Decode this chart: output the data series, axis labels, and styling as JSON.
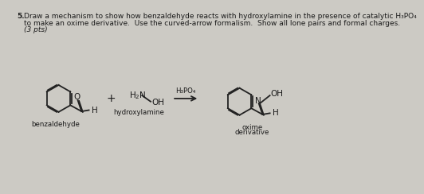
{
  "background_color": "#cccac4",
  "question_number": "5.",
  "question_text1": "Draw a mechanism to show how benzaldehyde reacts with hydroxylamine in the presence of catalytic H₃PO₄",
  "question_text2": "to make an oxime derivative.  Use the curved-arrow formalism.  Show all lone pairs and formal charges.",
  "question_pts": "(3 pts)",
  "label_benzaldehyde": "benzaldehyde",
  "label_hydroxylamine": "hydroxylamine",
  "label_catalyst": "H₃PO₄",
  "label_oxime1": "oxime",
  "label_oxime2": "derivative",
  "plus_sign": "+",
  "text_color": "#1a1a1a",
  "line_color": "#222222",
  "font_size_question": 6.5,
  "font_size_label": 6.2,
  "font_size_atom": 7.5
}
